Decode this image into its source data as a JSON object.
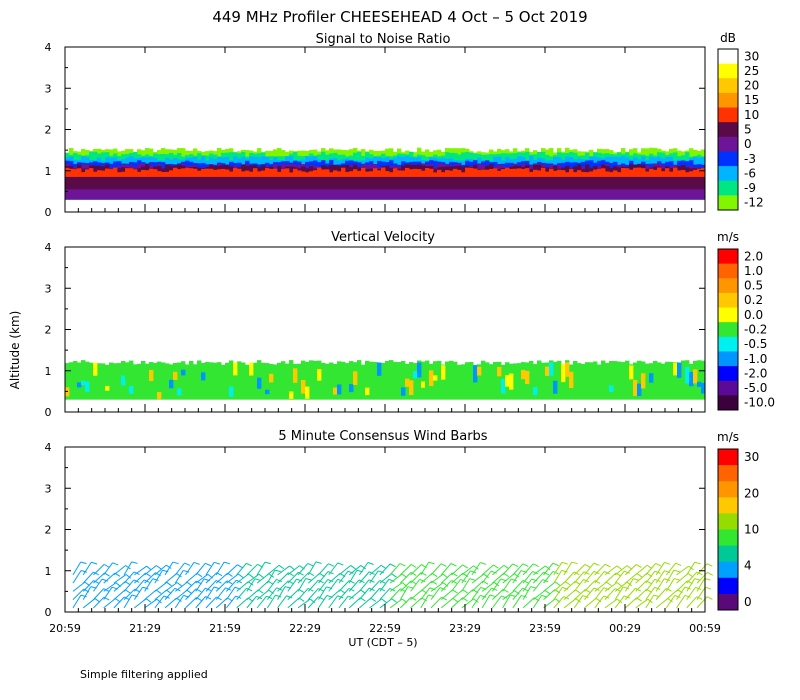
{
  "figure": {
    "title": "449 MHz Profiler CHEESEHEAD  4 Oct –  5 Oct 2019",
    "ylabel": "Altitude (km)",
    "xlabel": "UT  (CDT – 5)",
    "footnote": "Simple filtering applied"
  },
  "chart_data": [
    {
      "type": "heatmap",
      "title": "Signal to Noise Ratio",
      "unit": "dB",
      "x_ticks": [
        "20:59",
        "21:29",
        "21:59",
        "22:29",
        "22:59",
        "23:29",
        "23:59",
        "00:29",
        "00:59"
      ],
      "ylim": [
        0,
        4
      ],
      "y_ticks": [
        "0",
        "1",
        "2",
        "3",
        "4"
      ],
      "colorbar": {
        "labels": [
          "30",
          "25",
          "20",
          "15",
          "10",
          "5",
          "0",
          "-3",
          "-6",
          "-9",
          "-12"
        ],
        "colors": [
          "#ffffff",
          "#ffff00",
          "#ffc800",
          "#ff9600",
          "#ff3200",
          "#5a0a46",
          "#6e1496",
          "#0032ff",
          "#00b4ff",
          "#00e682",
          "#82f500"
        ]
      },
      "layers": [
        {
          "label": "-12",
          "color": "#82f500",
          "y0": 0.3,
          "y1": 1.5
        },
        {
          "label": "-9",
          "color": "#00e682",
          "y0": 0.3,
          "y1": 1.4
        },
        {
          "label": "-6",
          "color": "#00b4ff",
          "y0": 0.3,
          "y1": 1.3
        },
        {
          "label": "-3",
          "color": "#0032ff",
          "y0": 0.3,
          "y1": 1.2
        },
        {
          "label": "0",
          "color": "#6e1496",
          "y0": 0.3,
          "y1": 1.12
        },
        {
          "label": "5",
          "color": "#5a0a46",
          "y0": 0.55,
          "y1": 1.1
        },
        {
          "label": "10",
          "color": "#ff3200",
          "y0": 0.85,
          "y1": 1.02
        }
      ]
    },
    {
      "type": "heatmap",
      "title": "Vertical Velocity",
      "unit": "m/s",
      "x_ticks": [
        "20:59",
        "21:29",
        "21:59",
        "22:29",
        "22:59",
        "23:29",
        "23:59",
        "00:29",
        "00:59"
      ],
      "ylim": [
        0,
        4
      ],
      "y_ticks": [
        "0",
        "1",
        "2",
        "3",
        "4"
      ],
      "colorbar": {
        "labels": [
          "2.0",
          "1.0",
          "0.5",
          "0.2",
          "0.0",
          "-0.2",
          "-0.5",
          "-1.0",
          "-2.0",
          "-5.0",
          "-10.0"
        ],
        "colors": [
          "#ff0000",
          "#ff6400",
          "#ff9600",
          "#ffc800",
          "#ffff00",
          "#32e632",
          "#00f0f0",
          "#0096ff",
          "#0000ff",
          "#5a0a96",
          "#3c003c"
        ]
      },
      "layers": [
        {
          "label": "-0.2",
          "color": "#32e632",
          "y0": 0.3,
          "y1": 1.2
        }
      ]
    },
    {
      "type": "scatter",
      "title": "5 Minute Consensus Wind Barbs",
      "unit": "m/s",
      "x_ticks": [
        "20:59",
        "21:29",
        "21:59",
        "22:29",
        "22:59",
        "23:29",
        "23:59",
        "00:29",
        "00:59"
      ],
      "ylim": [
        0,
        4
      ],
      "y_ticks": [
        "0",
        "1",
        "2",
        "3",
        "4"
      ],
      "colorbar": {
        "labels": [
          "30",
          "20",
          "10",
          "4",
          "0"
        ],
        "colors": [
          "#ff0000",
          "#ff6400",
          "#ff9600",
          "#ffc800",
          "#96dc00",
          "#32e632",
          "#00c896",
          "#00a0ff",
          "#0000ff",
          "#5a0a78"
        ]
      },
      "barb_levels": [
        0.1,
        0.3,
        0.5,
        0.7,
        0.9
      ]
    }
  ]
}
